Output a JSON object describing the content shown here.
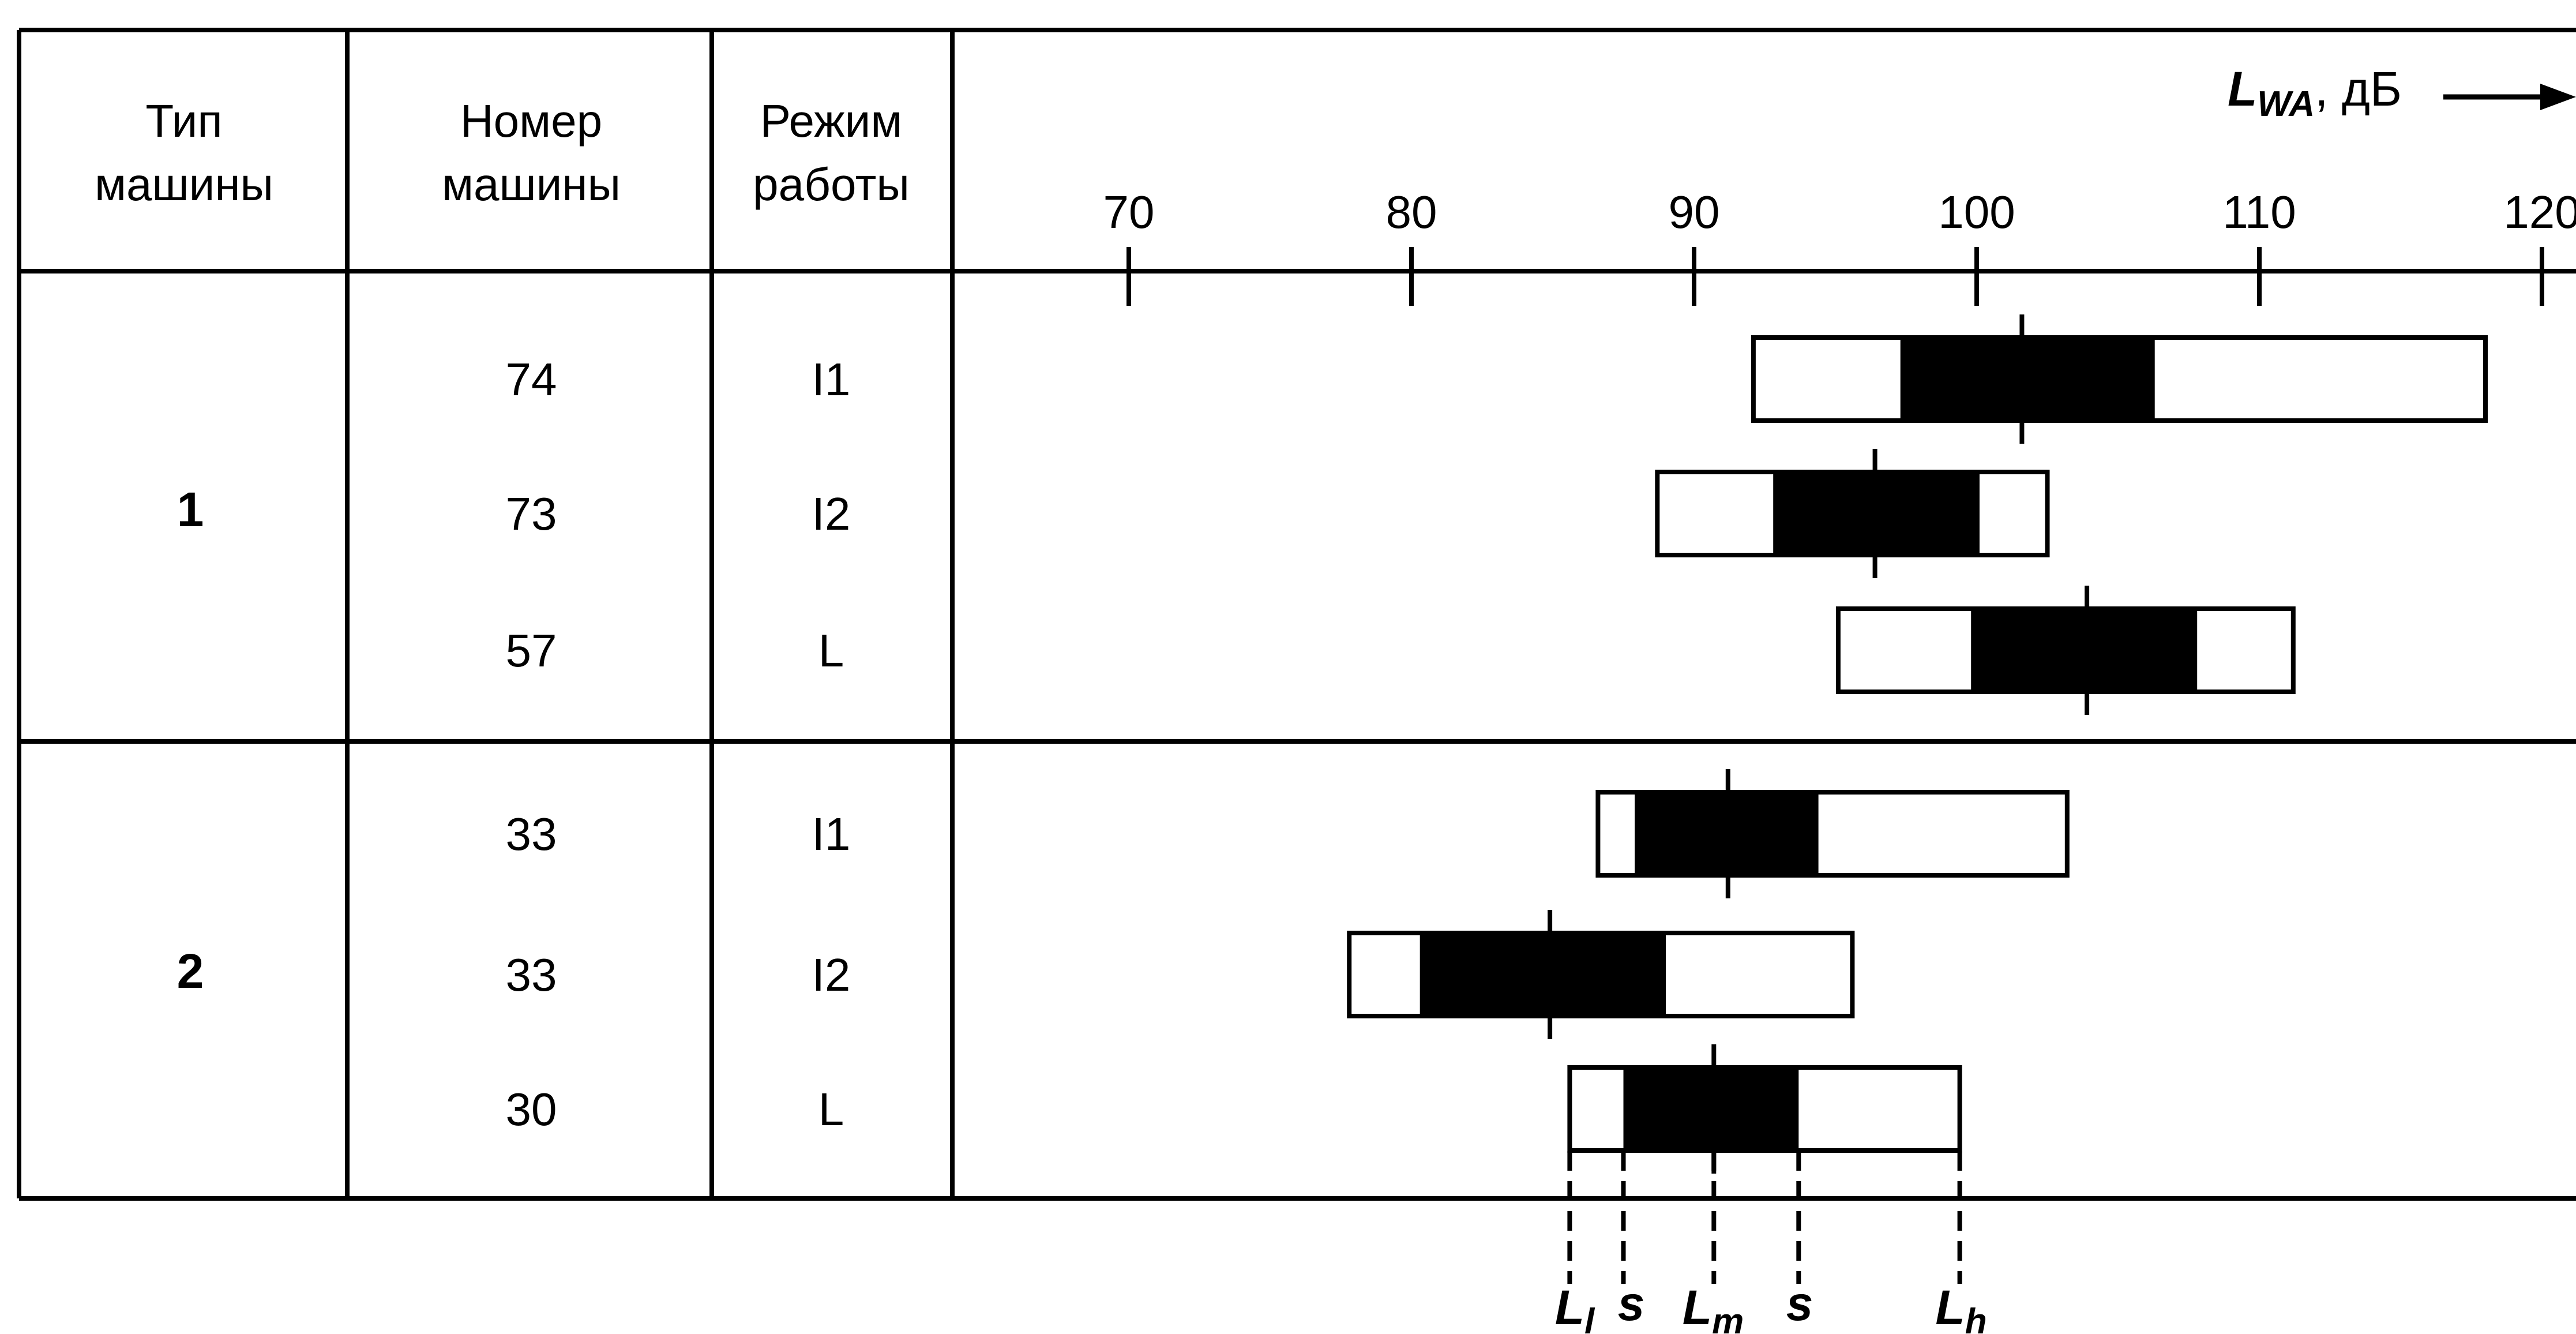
{
  "table": {
    "headers": {
      "type": [
        "Тип",
        "машины"
      ],
      "number": [
        "Номер",
        "машины"
      ],
      "mode": [
        "Режим",
        "работы"
      ]
    },
    "groups": [
      "1",
      "2"
    ]
  },
  "chart_data": {
    "type": "range-bar",
    "axis": {
      "label_main": "L",
      "label_sub": "WA",
      "label_unit": ", дБ",
      "ticks": [
        70,
        80,
        90,
        100,
        110,
        120
      ],
      "tick_labels": [
        "70",
        "80",
        "90",
        "100",
        "110",
        "120"
      ],
      "xlim": [
        70,
        120
      ]
    },
    "rows": [
      {
        "machine_type": "1",
        "machine_number": "74",
        "mode": "I1",
        "L_l": 92.1,
        "s_low": 97.3,
        "L_m": 101.6,
        "s_high": 106.3,
        "L_h": 118.0
      },
      {
        "machine_type": "1",
        "machine_number": "73",
        "mode": "I2",
        "L_l": 88.7,
        "s_low": 92.8,
        "L_m": 96.4,
        "s_high": 100.1,
        "L_h": 102.5
      },
      {
        "machine_type": "1",
        "machine_number": "57",
        "mode": "L",
        "L_l": 95.1,
        "s_low": 99.8,
        "L_m": 103.9,
        "s_high": 107.8,
        "L_h": 111.2
      },
      {
        "machine_type": "2",
        "machine_number": "33",
        "mode": "I1",
        "L_l": 86.6,
        "s_low": 87.9,
        "L_m": 91.2,
        "s_high": 94.4,
        "L_h": 103.2
      },
      {
        "machine_type": "2",
        "machine_number": "33",
        "mode": "I2",
        "L_l": 77.8,
        "s_low": 80.3,
        "L_m": 84.9,
        "s_high": 89.0,
        "L_h": 95.6
      },
      {
        "machine_type": "2",
        "machine_number": "30",
        "mode": "L",
        "L_l": 85.6,
        "s_low": 87.5,
        "L_m": 90.7,
        "s_high": 93.7,
        "L_h": 99.4
      }
    ],
    "legend": {
      "L_l_main": "L",
      "L_l_sub": "l",
      "s": "s",
      "L_m_main": "L",
      "L_m_sub": "m",
      "L_h_main": "L",
      "L_h_sub": "h"
    }
  }
}
